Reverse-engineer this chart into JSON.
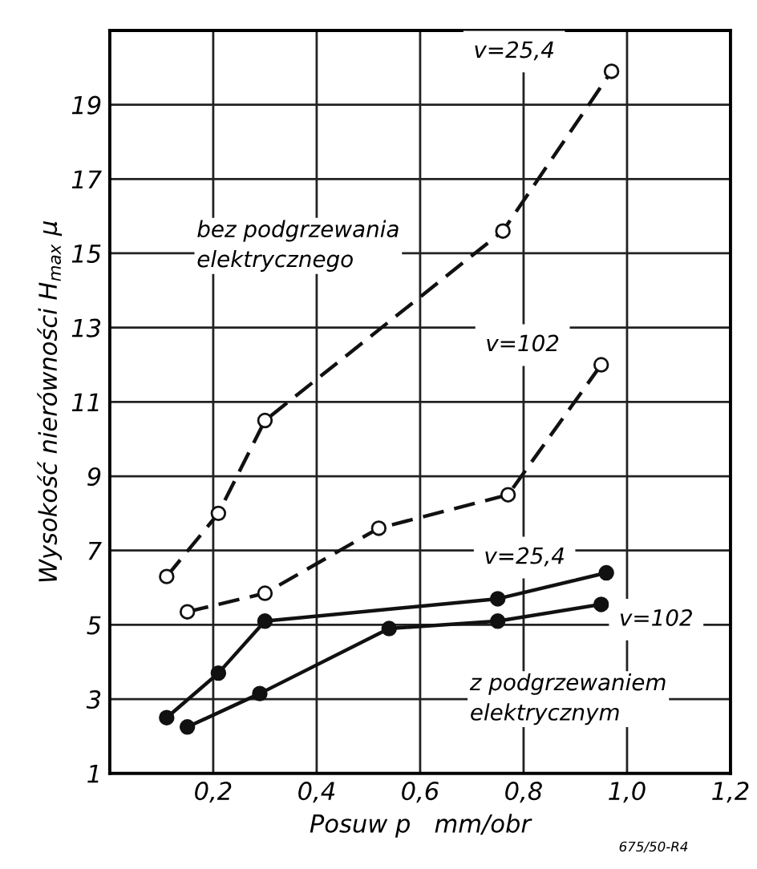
{
  "chart_data": {
    "type": "line",
    "xlabel": "Posuw p   mm/obr",
    "ylabel": "Wysokość nierówności H$_{max}$ μ",
    "series": [
      {
        "name": "v=25,4",
        "color": "#111111",
        "line_style": "dashed",
        "x": [
          0.11,
          0.21,
          0.3,
          0.76,
          0.97
        ],
        "values": [
          6.3,
          8.0,
          10.5,
          15.6,
          19.9
        ]
      },
      {
        "name": "v=102",
        "color": "#111111",
        "line_style": "dashed",
        "x": [
          0.15,
          0.3,
          0.52,
          0.77,
          0.95
        ],
        "values": [
          5.35,
          5.85,
          7.6,
          8.5,
          12.0
        ]
      },
      {
        "name": "v=25,4",
        "color": "#111111",
        "line_style": "solid",
        "x": [
          0.11,
          0.21,
          0.3,
          0.75,
          0.96
        ],
        "values": [
          2.5,
          3.7,
          5.1,
          5.7,
          6.4
        ]
      },
      {
        "name": "v=102",
        "color": "#111111",
        "line_style": "solid",
        "x": [
          0.15,
          0.29,
          0.54,
          0.75,
          0.95
        ],
        "values": [
          2.25,
          3.15,
          4.9,
          5.1,
          5.55
        ]
      }
    ],
    "marker": "circle",
    "xlim": [
      0,
      1.2
    ],
    "ylim": [
      1,
      21
    ],
    "xticks": [
      {
        "value": 0,
        "label": null
      },
      {
        "value": 0.2,
        "label": "0,2"
      },
      {
        "value": 0.4,
        "label": "0,4"
      },
      {
        "value": 0.6,
        "label": "0,6"
      },
      {
        "value": 0.8,
        "label": "0,8"
      },
      {
        "value": 1.0,
        "label": "1,0"
      },
      {
        "value": 1.2,
        "label": "1,2"
      }
    ],
    "yticks": [
      1,
      3,
      5,
      7,
      9,
      11,
      13,
      15,
      17,
      19
    ],
    "grid": true,
    "legend": false,
    "annotations": [
      "bez podgrzewania\nelektrycznego",
      "z podgrzewaniem\nelektrycznym",
      "675/50-R4"
    ]
  }
}
